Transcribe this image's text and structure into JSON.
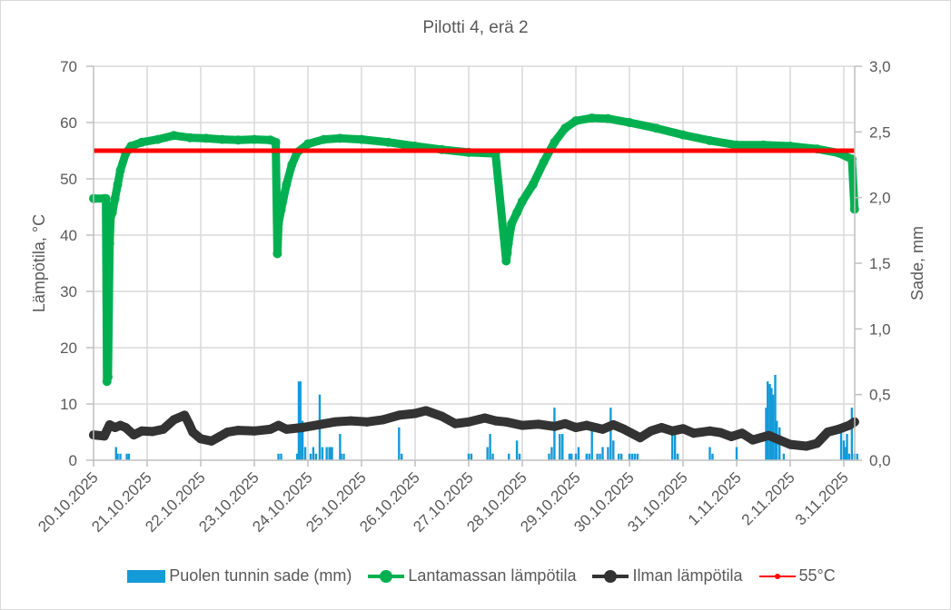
{
  "chart_data": {
    "type": "line",
    "title": "Pilotti 4, erä 2",
    "xlabel": "",
    "ylabel": "Lämpötila, °C",
    "y2label": "Sade, mm",
    "ylim": [
      0,
      70
    ],
    "y2lim": [
      0,
      3.0
    ],
    "y_ticks": [
      "0",
      "10",
      "20",
      "30",
      "40",
      "50",
      "60",
      "70"
    ],
    "y2_ticks": [
      "0,0",
      "0,5",
      "1,0",
      "1,5",
      "2,0",
      "2,5",
      "3,0"
    ],
    "x_ticks": [
      "20.10.2025",
      "21.10.2025",
      "22.10.2025",
      "23.10.2025",
      "24.10.2025",
      "25.10.2025",
      "26.10.2025",
      "27.10.2025",
      "28.10.2025",
      "29.10.2025",
      "30.10.2025",
      "31.10.2025",
      "1.11.2025",
      "2.11.2025",
      "3.11.2025"
    ],
    "grid": true,
    "legend_position": "bottom",
    "series": [
      {
        "name": "Puolen tunnin sade (mm)",
        "type": "bar",
        "axis": "right",
        "color": "#159ad8",
        "x_day": [
          0.42,
          0.45,
          0.5,
          0.62,
          0.66,
          3.45,
          3.5,
          3.8,
          3.83,
          3.86,
          3.9,
          3.95,
          4.05,
          4.1,
          4.15,
          4.22,
          4.27,
          4.35,
          4.4,
          4.42,
          4.45,
          4.6,
          4.62,
          4.67,
          5.7,
          5.75,
          7.0,
          7.05,
          7.35,
          7.4,
          7.45,
          7.75,
          7.9,
          7.95,
          8.5,
          8.55,
          8.6,
          8.7,
          8.75,
          8.88,
          8.92,
          9.0,
          9.05,
          9.2,
          9.25,
          9.3,
          9.4,
          9.45,
          9.5,
          9.6,
          9.65,
          9.7,
          9.8,
          9.85,
          10.0,
          10.05,
          10.1,
          10.15,
          10.8,
          10.85,
          10.9,
          11.5,
          11.55,
          12.0,
          12.55,
          12.58,
          12.62,
          12.65,
          12.68,
          12.72,
          12.75,
          12.8,
          12.88,
          13.95,
          14.0,
          14.03,
          14.06,
          14.1,
          14.15,
          14.2,
          14.25
        ],
        "values": [
          0.1,
          0.05,
          0.05,
          0.05,
          0.05,
          0.05,
          0.05,
          0.05,
          0.6,
          0.6,
          0.3,
          0.1,
          0.05,
          0.1,
          0.05,
          0.5,
          0.1,
          0.1,
          0.1,
          0.1,
          0.1,
          0.2,
          0.05,
          0.05,
          0.25,
          0.05,
          0.05,
          0.05,
          0.1,
          0.2,
          0.05,
          0.05,
          0.15,
          0.05,
          0.05,
          0.1,
          0.4,
          0.2,
          0.2,
          0.05,
          0.05,
          0.05,
          0.1,
          0.05,
          0.05,
          0.25,
          0.05,
          0.05,
          0.1,
          0.1,
          0.4,
          0.15,
          0.05,
          0.05,
          0.05,
          0.05,
          0.05,
          0.05,
          0.25,
          0.2,
          0.05,
          0.1,
          0.05,
          0.1,
          0.4,
          0.6,
          0.58,
          0.55,
          0.5,
          0.65,
          0.3,
          0.25,
          0.05,
          0.25,
          0.15,
          0.1,
          0.2,
          0.05,
          0.4,
          0.05,
          0.05
        ]
      },
      {
        "name": "Lantamassan lämpötila",
        "type": "line",
        "axis": "left",
        "color": "#00b050",
        "x_day": [
          0.0,
          0.2,
          0.23,
          0.25,
          0.27,
          0.3,
          0.32,
          0.35,
          0.4,
          0.45,
          0.5,
          0.6,
          0.7,
          0.9,
          1.2,
          1.5,
          1.8,
          2.1,
          2.4,
          2.7,
          3.0,
          3.3,
          3.4,
          3.43,
          3.45,
          3.5,
          3.6,
          3.7,
          3.8,
          4.0,
          4.3,
          4.6,
          5.0,
          5.5,
          6.0,
          6.5,
          7.0,
          7.5,
          7.7,
          7.72,
          7.74,
          7.8,
          7.9,
          8.0,
          8.2,
          8.4,
          8.6,
          8.8,
          9.0,
          9.3,
          9.6,
          10.0,
          10.5,
          11.0,
          11.5,
          12.0,
          12.5,
          13.0,
          13.5,
          13.9,
          14.15,
          14.2
        ],
        "values": [
          46.5,
          46.5,
          46.5,
          14,
          14.8,
          38.5,
          43.3,
          44,
          46.5,
          49,
          51.5,
          54.5,
          55.8,
          56.5,
          57,
          57.7,
          57.3,
          57.2,
          57,
          56.9,
          57,
          56.9,
          56.5,
          36.7,
          42,
          44.5,
          49,
          52.5,
          54.7,
          56.2,
          57,
          57.2,
          57,
          56.5,
          55.8,
          55.2,
          54.7,
          54.5,
          35.4,
          36.8,
          38.5,
          42,
          44,
          46,
          49,
          53,
          56.5,
          59,
          60.3,
          60.8,
          60.7,
          60,
          59,
          57.8,
          56.8,
          56,
          56,
          55.8,
          55.3,
          54.6,
          53.5,
          44.6
        ]
      },
      {
        "name": "Ilman lämpötila",
        "type": "line",
        "axis": "left",
        "color": "#333333",
        "x_day": [
          0.0,
          0.2,
          0.3,
          0.4,
          0.5,
          0.6,
          0.75,
          0.9,
          1.1,
          1.3,
          1.5,
          1.7,
          1.78,
          1.85,
          2.0,
          2.2,
          2.35,
          2.5,
          2.7,
          3.0,
          3.3,
          3.45,
          3.6,
          3.9,
          4.2,
          4.5,
          4.8,
          5.1,
          5.4,
          5.7,
          6.0,
          6.2,
          6.5,
          6.75,
          7.0,
          7.3,
          7.5,
          7.7,
          8.0,
          8.3,
          8.6,
          8.8,
          9.0,
          9.2,
          9.5,
          9.7,
          9.9,
          10.2,
          10.4,
          10.6,
          10.8,
          11.0,
          11.2,
          11.5,
          11.7,
          11.9,
          12.1,
          12.3,
          12.6,
          12.8,
          13.0,
          13.3,
          13.5,
          13.7,
          13.9,
          14.1,
          14.2
        ],
        "values": [
          4.5,
          4.3,
          6.3,
          5.8,
          6.2,
          5.8,
          4.5,
          5.2,
          5.1,
          5.5,
          7.2,
          8,
          6.5,
          5,
          3.8,
          3.4,
          4.2,
          5,
          5.3,
          5.2,
          5.5,
          6.2,
          5.5,
          5.8,
          6.3,
          6.8,
          7,
          6.8,
          7.2,
          8,
          8.3,
          8.8,
          7.8,
          6.5,
          6.8,
          7.5,
          7,
          6.8,
          6.2,
          6.4,
          6,
          6.5,
          5.8,
          6.2,
          5.5,
          6.3,
          5.5,
          4,
          5.2,
          5.8,
          5.2,
          5.6,
          4.8,
          5.2,
          4.9,
          4.2,
          4.8,
          3.6,
          4.4,
          3.6,
          2.8,
          2.5,
          3,
          5,
          5.5,
          6.2,
          6.8
        ]
      },
      {
        "name": "55°C",
        "type": "line",
        "axis": "left",
        "color": "#ff0000",
        "x_day": [
          0,
          14.2
        ],
        "values": [
          55,
          55
        ]
      }
    ]
  },
  "legend": {
    "items": [
      {
        "label": "Puolen tunnin sade (mm)",
        "color": "#159ad8"
      },
      {
        "label": "Lantamassan lämpötila",
        "color": "#00b050"
      },
      {
        "label": "Ilman lämpötila",
        "color": "#333333"
      },
      {
        "label": "55°C",
        "color": "#ff0000"
      }
    ]
  }
}
